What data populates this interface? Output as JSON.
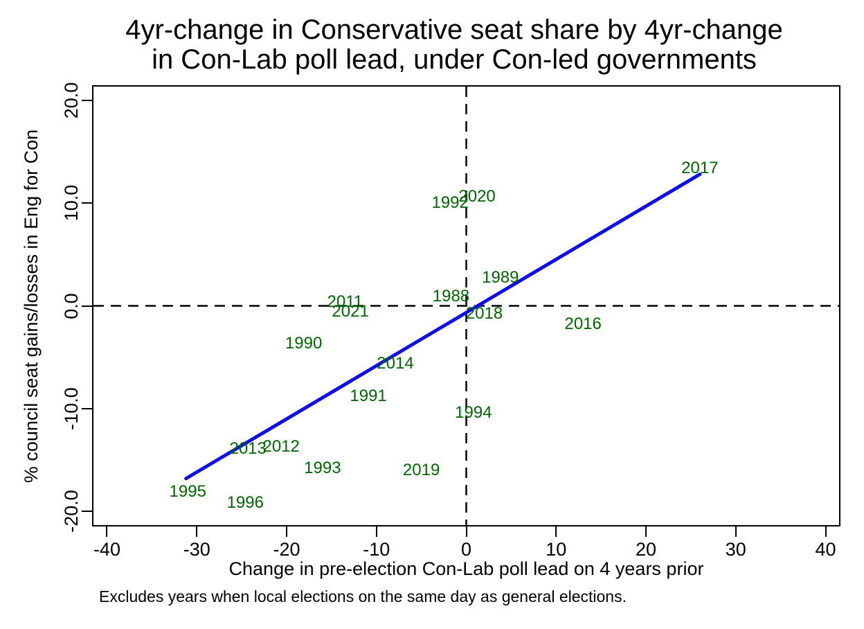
{
  "title": {
    "line1": "4yr-change in Conservative seat share by 4yr-change",
    "line2": "in Con-Lab poll lead, under Con-led governments"
  },
  "footnote": "Excludes years when local elections on the same day as general elections.",
  "colors": {
    "point_label_green": "#006400",
    "fit_line_blue": "#0d0dee",
    "axis_black": "#000000"
  },
  "chart_data": {
    "type": "scatter",
    "title": "4yr-change in Conservative seat share by 4yr-change in Con-Lab poll lead, under Con-led governments",
    "xlabel": "Change in pre-election Con-Lab poll lead on 4 years prior",
    "ylabel": "% council seat gains/losses in Eng for Con",
    "note": "Excludes years when local elections on the same day as general elections.",
    "marker_style": "year-text-labels",
    "grid": false,
    "legend": "none",
    "xlim": [
      -41.5,
      41.5
    ],
    "ylim": [
      -21.33,
      21.33
    ],
    "x_ticks": [
      {
        "value": -40,
        "label": "-40"
      },
      {
        "value": -30,
        "label": "-30"
      },
      {
        "value": -20,
        "label": "-20"
      },
      {
        "value": -10,
        "label": "-10"
      },
      {
        "value": 0,
        "label": "0"
      },
      {
        "value": 10,
        "label": "10"
      },
      {
        "value": 20,
        "label": "20"
      },
      {
        "value": 30,
        "label": "30"
      },
      {
        "value": 40,
        "label": "40"
      }
    ],
    "y_ticks": [
      {
        "value": 20,
        "label": "20.0"
      },
      {
        "value": 10,
        "label": "10.0"
      },
      {
        "value": 0,
        "label": "0.0"
      },
      {
        "value": -10,
        "label": "-10.0"
      },
      {
        "value": -20,
        "label": "-20.0"
      }
    ],
    "points": [
      {
        "label": "1988",
        "x": -1.7,
        "y": 0.9
      },
      {
        "label": "1989",
        "x": 3.8,
        "y": 2.7
      },
      {
        "label": "1990",
        "x": -18.1,
        "y": -3.7
      },
      {
        "label": "1991",
        "x": -10.9,
        "y": -8.8
      },
      {
        "label": "1992",
        "x": -1.8,
        "y": 10.0
      },
      {
        "label": "1993",
        "x": -16.0,
        "y": -15.8
      },
      {
        "label": "1994",
        "x": 0.8,
        "y": -10.4
      },
      {
        "label": "1995",
        "x": -31.0,
        "y": -18.1
      },
      {
        "label": "1996",
        "x": -24.6,
        "y": -19.2
      },
      {
        "label": "2011",
        "x": -13.5,
        "y": 0.4
      },
      {
        "label": "2012",
        "x": -20.6,
        "y": -13.7
      },
      {
        "label": "2013",
        "x": -24.3,
        "y": -13.9
      },
      {
        "label": "2014",
        "x": -7.9,
        "y": -5.6
      },
      {
        "label": "2016",
        "x": 13.0,
        "y": -1.8
      },
      {
        "label": "2017",
        "x": 26.0,
        "y": 13.4
      },
      {
        "label": "2018",
        "x": 2.0,
        "y": -0.8
      },
      {
        "label": "2019",
        "x": -5.0,
        "y": -16.0
      },
      {
        "label": "2020",
        "x": 1.2,
        "y": 10.6
      },
      {
        "label": "2021",
        "x": -12.9,
        "y": -0.6
      }
    ],
    "fit_line": {
      "x1": -31.2,
      "y1": -16.8,
      "x2": 26.0,
      "y2": 12.8
    },
    "reference_lines": {
      "vertical_at_x": 0,
      "horizontal_at_y": 0,
      "style": "dashed"
    }
  }
}
